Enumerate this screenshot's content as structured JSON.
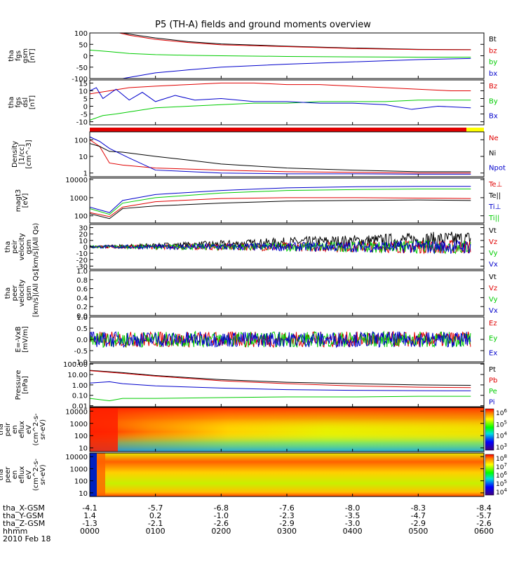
{
  "title": "P5 (TH-A) fields and ground moments overview",
  "colors": {
    "black": "#000000",
    "red": "#e00000",
    "green": "#00cc00",
    "blue": "#0000cc",
    "yellow": "#ffff00"
  },
  "x_ticks": [
    "0000",
    "0100",
    "0200",
    "0300",
    "0400",
    "0500",
    "0600"
  ],
  "date_label": "2010 Feb 18",
  "ephemeris": [
    {
      "name": "tha_X-GSM",
      "values": [
        "-4.1",
        "-5.7",
        "-6.8",
        "-7.6",
        "-8.0",
        "-8.3",
        "-8.4"
      ]
    },
    {
      "name": "tha_Y-GSM",
      "values": [
        "1.4",
        "0.2",
        "-1.0",
        "-2.3",
        "-3.5",
        "-4.7",
        "-5.7"
      ]
    },
    {
      "name": "tha_Z-GSM",
      "values": [
        "-1.3",
        "-2.1",
        "-2.6",
        "-2.9",
        "-3.0",
        "-2.9",
        "-2.6"
      ]
    },
    {
      "name": "hhmm",
      "values": [
        "0000",
        "0100",
        "0200",
        "0300",
        "0400",
        "0500",
        "0600"
      ]
    }
  ],
  "chart_data": [
    {
      "type": "line",
      "id": "p1",
      "ylabel": [
        "tha",
        "fgs",
        "gsm",
        "[nT]"
      ],
      "ylim": [
        -100,
        100
      ],
      "yticks": [
        "100",
        "50",
        "0",
        "-50",
        "-100"
      ],
      "series": [
        {
          "name": "Bt",
          "color": "#000000",
          "x": [
            0,
            0.3,
            0.6,
            1,
            1.5,
            2,
            3,
            4,
            5,
            5.8
          ],
          "y": [
            130,
            110,
            95,
            78,
            62,
            52,
            42,
            34,
            28,
            27
          ]
        },
        {
          "name": "bz",
          "color": "#e00000",
          "x": [
            0,
            0.3,
            0.6,
            1,
            1.5,
            2,
            3,
            4,
            5,
            5.8
          ],
          "y": [
            130,
            110,
            90,
            72,
            58,
            48,
            40,
            32,
            27,
            26
          ]
        },
        {
          "name": "by",
          "color": "#00cc00",
          "x": [
            0,
            0.3,
            0.6,
            1,
            1.5,
            2,
            3,
            4,
            5,
            5.8
          ],
          "y": [
            25,
            18,
            10,
            5,
            2,
            0,
            -3,
            -5,
            -6,
            -6
          ]
        },
        {
          "name": "bx",
          "color": "#0000cc",
          "x": [
            0,
            0.3,
            0.6,
            1,
            1.5,
            2,
            3,
            4,
            5,
            5.8
          ],
          "y": [
            -130,
            -110,
            -95,
            -75,
            -62,
            -50,
            -37,
            -27,
            -17,
            -12
          ]
        }
      ]
    },
    {
      "type": "line",
      "id": "p2",
      "ylabel": [
        "tha",
        "fgs",
        "dsl",
        "[nT]"
      ],
      "ylim": [
        -12,
        17
      ],
      "yticks": [
        "15",
        "10",
        "5",
        "0",
        "-5",
        "-10"
      ],
      "series": [
        {
          "name": "Bz",
          "color": "#e00000",
          "x": [
            0,
            0.3,
            0.6,
            1,
            1.5,
            2,
            2.5,
            3,
            3.5,
            4,
            4.5,
            5,
            5.5,
            5.8
          ],
          "y": [
            8,
            10,
            12,
            13,
            14,
            15,
            15,
            14,
            14,
            13,
            12,
            11,
            10,
            10
          ]
        },
        {
          "name": "By",
          "color": "#00cc00",
          "x": [
            0,
            0.2,
            0.4,
            0.7,
            1,
            1.5,
            2,
            2.5,
            3,
            3.5,
            4,
            4.5,
            5,
            5.5,
            5.8
          ],
          "y": [
            -9,
            -6,
            -5,
            -3,
            -1,
            0,
            1,
            2,
            2,
            3,
            3,
            3,
            4,
            4,
            4
          ]
        },
        {
          "name": "Bx",
          "color": "#0000cc",
          "x": [
            0,
            0.1,
            0.2,
            0.4,
            0.6,
            0.8,
            1,
            1.3,
            1.6,
            2,
            2.5,
            3,
            3.5,
            4,
            4.5,
            4.9,
            5.3,
            5.8
          ],
          "y": [
            10,
            12,
            5,
            11,
            4,
            9,
            3,
            7,
            4,
            5,
            3,
            3,
            2,
            2,
            1,
            -2,
            0,
            -1
          ]
        }
      ]
    },
    {
      "type": "line",
      "id": "p3",
      "ylabel": [
        "Density",
        "[1/cc]",
        "[cm^-3]"
      ],
      "ylim": [
        0.6,
        300
      ],
      "scale": "log",
      "yticks": [
        "100",
        "10",
        "1"
      ],
      "series": [
        {
          "name": "Ne",
          "color": "#e00000",
          "x": [
            0,
            0.15,
            0.3,
            0.5,
            1,
            2,
            3,
            4,
            5,
            5.8
          ],
          "y": [
            100,
            40,
            4,
            3,
            2,
            1.5,
            1.2,
            1.1,
            1.0,
            1.0
          ]
        },
        {
          "name": "Ni",
          "color": "#000000",
          "x": [
            0,
            0.15,
            0.3,
            0.5,
            1,
            1.5,
            2,
            3,
            4,
            5,
            5.8
          ],
          "y": [
            60,
            40,
            20,
            18,
            10,
            6,
            3.5,
            2,
            1.5,
            1.2,
            1.2
          ]
        },
        {
          "name": "Npot",
          "color": "#0000cc",
          "x": [
            0,
            0.15,
            0.3,
            0.6,
            1,
            2,
            3,
            4,
            5,
            5.8
          ],
          "y": [
            150,
            80,
            30,
            8,
            1.5,
            1,
            0.9,
            0.9,
            0.85,
            0.85
          ]
        }
      ]
    },
    {
      "type": "line",
      "id": "p4",
      "ylabel": [
        "magt3",
        "[eV]"
      ],
      "ylim": [
        40,
        12000
      ],
      "scale": "log",
      "yticks": [
        "10000",
        "1000",
        "100"
      ],
      "series": [
        {
          "name": "Te⊥",
          "color": "#e00000",
          "x": [
            0,
            0.3,
            0.5,
            1,
            2,
            3,
            4,
            5,
            5.8
          ],
          "y": [
            150,
            90,
            300,
            600,
            900,
            1000,
            1000,
            950,
            900
          ]
        },
        {
          "name": "Te||",
          "color": "#000000",
          "x": [
            0,
            0.3,
            0.5,
            1,
            2,
            3,
            4,
            5,
            5.8
          ],
          "y": [
            130,
            70,
            250,
            350,
            500,
            650,
            700,
            750,
            700
          ]
        },
        {
          "name": "Ti⊥",
          "color": "#0000cc",
          "x": [
            0,
            0.3,
            0.5,
            1,
            2,
            3,
            4,
            5,
            5.8
          ],
          "y": [
            300,
            150,
            700,
            1500,
            2500,
            3500,
            4000,
            4200,
            4200
          ]
        },
        {
          "name": "Ti||",
          "color": "#00cc00",
          "x": [
            0,
            0.3,
            0.5,
            1,
            2,
            3,
            4,
            5,
            5.8
          ],
          "y": [
            250,
            120,
            500,
            1000,
            1800,
            2500,
            2800,
            3000,
            3000
          ]
        }
      ]
    },
    {
      "type": "line",
      "id": "p5",
      "ylabel": [
        "tha",
        "peir",
        "velocity",
        "gsm",
        "[km/s](All Qs)"
      ],
      "ylim": [
        -35,
        35
      ],
      "yticks": [
        "30",
        "20",
        "10",
        "0",
        "-10",
        "-20",
        "-30"
      ],
      "series": [
        {
          "name": "Vt",
          "color": "#000000",
          "x": [
            0,
            1,
            2,
            3,
            4,
            5,
            5.8
          ],
          "y": [
            0,
            2,
            4,
            7,
            9,
            11,
            12
          ]
        },
        {
          "name": "Vz",
          "color": "#e00000",
          "x": [
            0,
            1,
            2,
            3,
            4,
            5,
            5.8
          ],
          "y": [
            0,
            0,
            0,
            0,
            0,
            0,
            0
          ]
        },
        {
          "name": "Vy",
          "color": "#00cc00",
          "x": [
            0,
            1,
            2,
            3,
            4,
            5,
            5.8
          ],
          "y": [
            0,
            0,
            0,
            0,
            0,
            0,
            0
          ]
        },
        {
          "name": "Vx",
          "color": "#0000cc",
          "x": [
            0,
            1,
            2,
            3,
            4,
            5,
            5.8
          ],
          "y": [
            0,
            0,
            0,
            0,
            0,
            0,
            0
          ]
        }
      ]
    },
    {
      "type": "line",
      "id": "p6",
      "ylabel": [
        "tha",
        "peer",
        "velocity",
        "gsm",
        "[km/s](All Qs)"
      ],
      "ylim": [
        0,
        1
      ],
      "yticks": [
        "1.0",
        "0.8",
        "0.6",
        "0.4",
        "0.2",
        "0.0"
      ],
      "series": [
        {
          "name": "Vt",
          "color": "#000000",
          "x": [],
          "y": []
        },
        {
          "name": "Vz",
          "color": "#e00000",
          "x": [],
          "y": []
        },
        {
          "name": "Vy",
          "color": "#00cc00",
          "x": [],
          "y": []
        },
        {
          "name": "Vx",
          "color": "#0000cc",
          "x": [],
          "y": []
        }
      ]
    },
    {
      "type": "line",
      "id": "p7",
      "ylabel": [
        "E=-VxB",
        "[mV/m]"
      ],
      "ylim": [
        -1,
        1
      ],
      "yticks": [
        "1.0",
        "0.5",
        "0.0",
        "-0.5",
        "-1.0"
      ],
      "series": [
        {
          "name": "Ez",
          "color": "#e00000",
          "x": [
            0,
            5.8
          ],
          "y": [
            0,
            0
          ]
        },
        {
          "name": "Ey",
          "color": "#00cc00",
          "x": [
            0,
            5.8
          ],
          "y": [
            0,
            0
          ]
        },
        {
          "name": "Ex",
          "color": "#0000cc",
          "x": [
            0,
            5.8
          ],
          "y": [
            0,
            0
          ]
        }
      ]
    },
    {
      "type": "line",
      "id": "p8",
      "ylabel": [
        "Pressure",
        "[nPa]"
      ],
      "ylim": [
        0.008,
        120
      ],
      "scale": "log",
      "yticks": [
        "100.00",
        "10.00",
        "1.00",
        "0.10",
        "0.01"
      ],
      "series": [
        {
          "name": "Pt",
          "color": "#000000",
          "x": [
            0,
            0.5,
            1,
            1.5,
            2,
            3,
            4,
            5,
            5.8
          ],
          "y": [
            25,
            15,
            8,
            5,
            3.2,
            1.8,
            1.3,
            1.0,
            0.9
          ]
        },
        {
          "name": "Pb",
          "color": "#e00000",
          "x": [
            0,
            0.5,
            1,
            1.5,
            2,
            3,
            4,
            5,
            5.8
          ],
          "y": [
            23,
            13,
            7,
            4.2,
            2.5,
            1.3,
            0.8,
            0.6,
            0.55
          ]
        },
        {
          "name": "Pe",
          "color": "#00cc00",
          "x": [
            0,
            0.3,
            0.5,
            1,
            2,
            3,
            4,
            5,
            5.8
          ],
          "y": [
            0.05,
            0.03,
            0.05,
            0.05,
            0.06,
            0.07,
            0.07,
            0.08,
            0.08
          ]
        },
        {
          "name": "Pi",
          "color": "#0000cc",
          "x": [
            0,
            0.3,
            0.5,
            1,
            2,
            3,
            4,
            5,
            5.8
          ],
          "y": [
            1.5,
            2,
            1.3,
            0.8,
            0.5,
            0.35,
            0.3,
            0.28,
            0.27
          ]
        }
      ]
    },
    {
      "type": "heatmap",
      "id": "p9",
      "ylabel": [
        "tha",
        "peir",
        "en",
        "eflux",
        "eV",
        "(cm^2-s-",
        "sr-eV)"
      ],
      "ylim": [
        5,
        20000
      ],
      "scale": "log",
      "yticks": [
        "10000",
        "1000",
        "100",
        "10"
      ],
      "colorbar_ticks": [
        "10^6",
        "10^5",
        "10^4",
        "10^3"
      ]
    },
    {
      "type": "heatmap",
      "id": "p10",
      "ylabel": [
        "tha",
        "peer",
        "en",
        "eflux",
        "eV",
        "(cm^2-s-",
        "sr-eV)"
      ],
      "ylim": [
        5,
        20000
      ],
      "scale": "log",
      "yticks": [
        "10000",
        "1000",
        "100",
        "10"
      ],
      "colorbar_ticks": [
        "10^8",
        "10^7",
        "10^6",
        "10^5",
        "10^4"
      ]
    }
  ]
}
